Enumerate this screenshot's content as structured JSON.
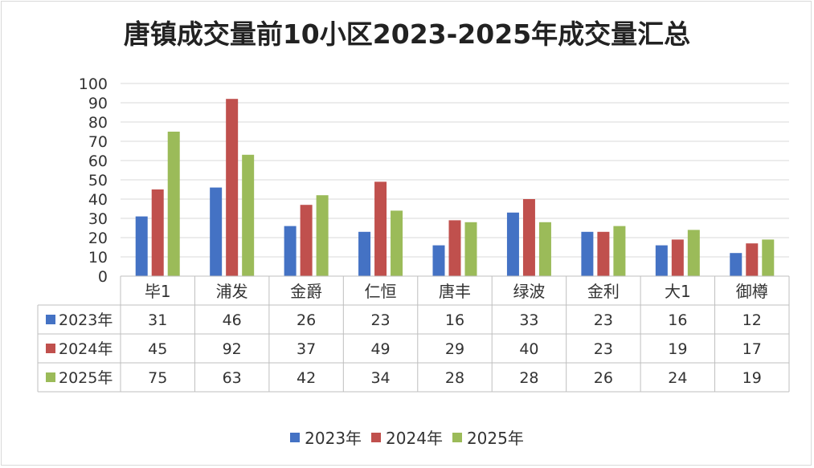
{
  "chart_data": {
    "type": "bar",
    "title": "唐镇成交量前10小区2023-2025年成交量汇总",
    "categories": [
      "毕1",
      "浦发",
      "金爵",
      "仁恒",
      "唐丰",
      "绿波",
      "金利",
      "大1",
      "御樽"
    ],
    "series": [
      {
        "name": "2023年",
        "color": "#4472c4",
        "values": [
          31,
          46,
          26,
          23,
          16,
          33,
          23,
          16,
          12
        ]
      },
      {
        "name": "2024年",
        "color": "#c0504d",
        "values": [
          45,
          92,
          37,
          49,
          29,
          40,
          23,
          19,
          17
        ]
      },
      {
        "name": "2025年",
        "color": "#9bbb59",
        "values": [
          75,
          63,
          42,
          34,
          28,
          28,
          26,
          24,
          19
        ]
      }
    ],
    "ylim": [
      0,
      100
    ],
    "yticks": [
      0,
      10,
      20,
      30,
      40,
      50,
      60,
      70,
      80,
      90,
      100
    ],
    "grid": true,
    "legend": "bottom",
    "data_table": true
  }
}
